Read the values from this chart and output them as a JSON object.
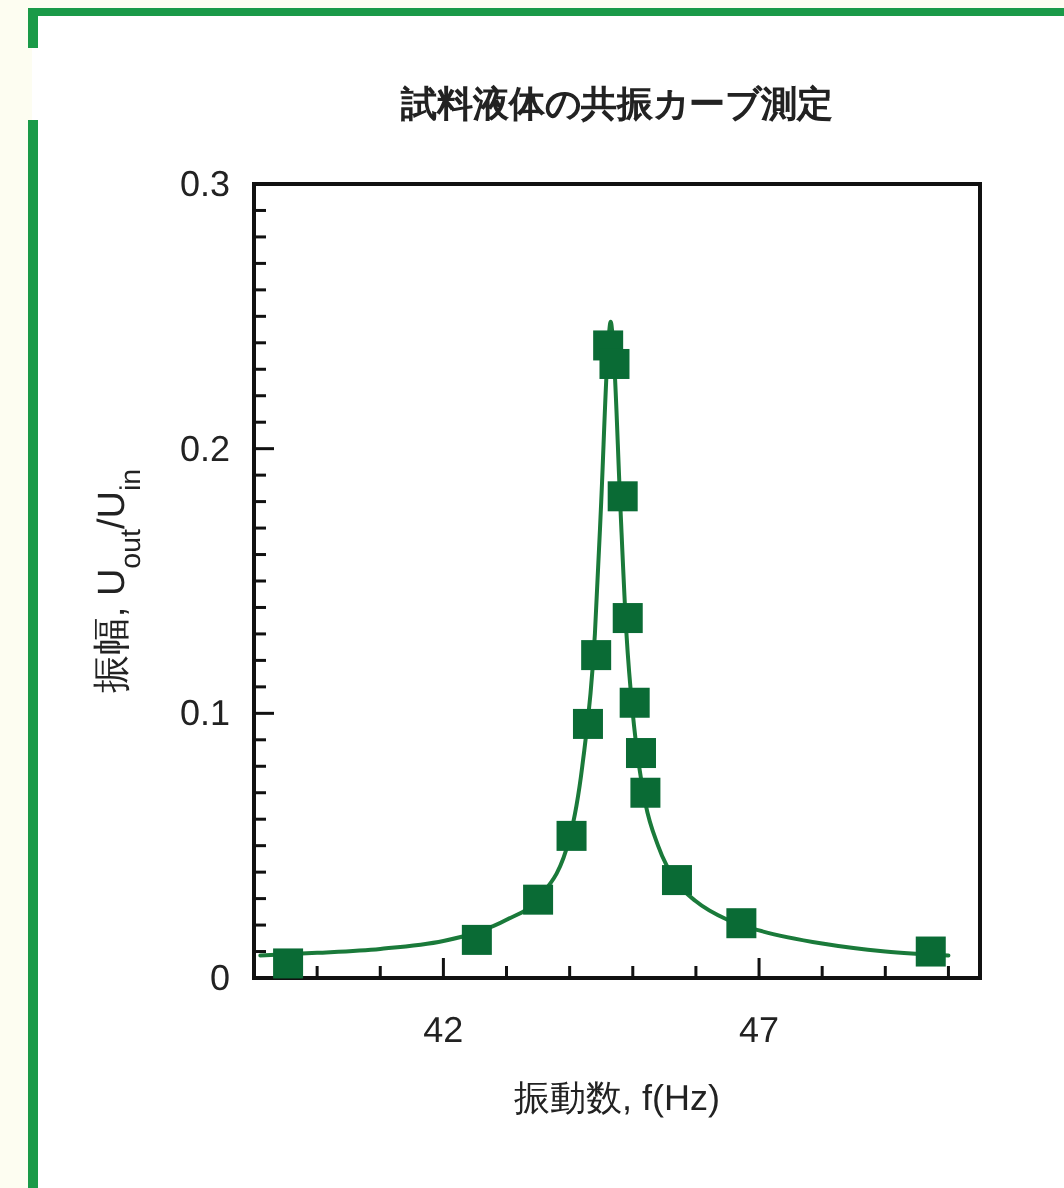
{
  "chart_data": {
    "type": "scatter",
    "title": "試料液体の共振カーブ測定",
    "xlabel": "振動数, f(Hz)",
    "ylabel": "振幅, U$_{out}$/U$_{in}$",
    "xlim": [
      39,
      50.5
    ],
    "xticks": [
      {
        "value": 40,
        "label": null
      },
      {
        "value": 41,
        "label": null
      },
      42,
      {
        "value": 43,
        "label": null
      },
      {
        "value": 44,
        "label": null
      },
      {
        "value": 45,
        "label": null
      },
      {
        "value": 46,
        "label": null
      },
      47,
      {
        "value": 48,
        "label": null
      },
      {
        "value": 49,
        "label": null
      },
      {
        "value": 50,
        "label": null
      }
    ],
    "ylim": [
      0,
      0.3
    ],
    "yticks": [
      0,
      {
        "value": 0.01,
        "label": null
      },
      {
        "value": 0.02,
        "label": null
      },
      {
        "value": 0.03,
        "label": null
      },
      {
        "value": 0.04,
        "label": null
      },
      {
        "value": 0.05,
        "label": null
      },
      {
        "value": 0.06,
        "label": null
      },
      {
        "value": 0.07,
        "label": null
      },
      {
        "value": 0.08,
        "label": null
      },
      {
        "value": 0.09,
        "label": null
      },
      0.1,
      {
        "value": 0.11,
        "label": null
      },
      {
        "value": 0.12,
        "label": null
      },
      {
        "value": 0.13,
        "label": null
      },
      {
        "value": 0.14,
        "label": null
      },
      {
        "value": 0.15,
        "label": null
      },
      {
        "value": 0.16,
        "label": null
      },
      {
        "value": 0.17,
        "label": null
      },
      {
        "value": 0.18,
        "label": null
      },
      {
        "value": 0.19,
        "label": null
      },
      0.2,
      {
        "value": 0.21,
        "label": null
      },
      {
        "value": 0.22,
        "label": null
      },
      {
        "value": 0.23,
        "label": null
      },
      {
        "value": 0.24,
        "label": null
      },
      {
        "value": 0.25,
        "label": null
      },
      {
        "value": 0.26,
        "label": null
      },
      {
        "value": 0.27,
        "label": null
      },
      {
        "value": 0.28,
        "label": null
      },
      {
        "value": 0.29,
        "label": null
      },
      0.3
    ],
    "grid": false,
    "marker": "square",
    "series": [
      {
        "type": "line",
        "color": "#1a7a3a",
        "line_style": "solid",
        "marker": "none",
        "x": [
          39.1,
          40,
          41,
          42,
          42.5,
          43,
          43.5,
          44,
          44.2,
          44.4,
          44.5,
          44.6,
          44.65,
          44.7,
          44.8,
          44.9,
          45,
          45.1,
          45.2,
          45.4,
          45.7,
          46,
          46.5,
          47,
          48,
          49,
          50
        ],
        "values": [
          0.0085,
          0.0095,
          0.011,
          0.014,
          0.017,
          0.022,
          0.03,
          0.053,
          0.08,
          0.13,
          0.18,
          0.235,
          0.248,
          0.235,
          0.18,
          0.13,
          0.1,
          0.08,
          0.066,
          0.05,
          0.036,
          0.029,
          0.022,
          0.018,
          0.013,
          0.01,
          0.0085
        ]
      },
      {
        "color": "#0a6b35",
        "x": [
          39.54,
          42.53,
          43.5,
          44.03,
          44.29,
          44.42,
          44.61,
          44.71,
          44.84,
          44.92,
          45.03,
          45.13,
          45.2,
          45.7,
          46.72,
          49.72
        ],
        "values": [
          0.0055,
          0.0144,
          0.0296,
          0.0537,
          0.096,
          0.122,
          0.239,
          0.232,
          0.182,
          0.136,
          0.104,
          0.085,
          0.07,
          0.037,
          0.0207,
          0.01
        ]
      }
    ]
  }
}
